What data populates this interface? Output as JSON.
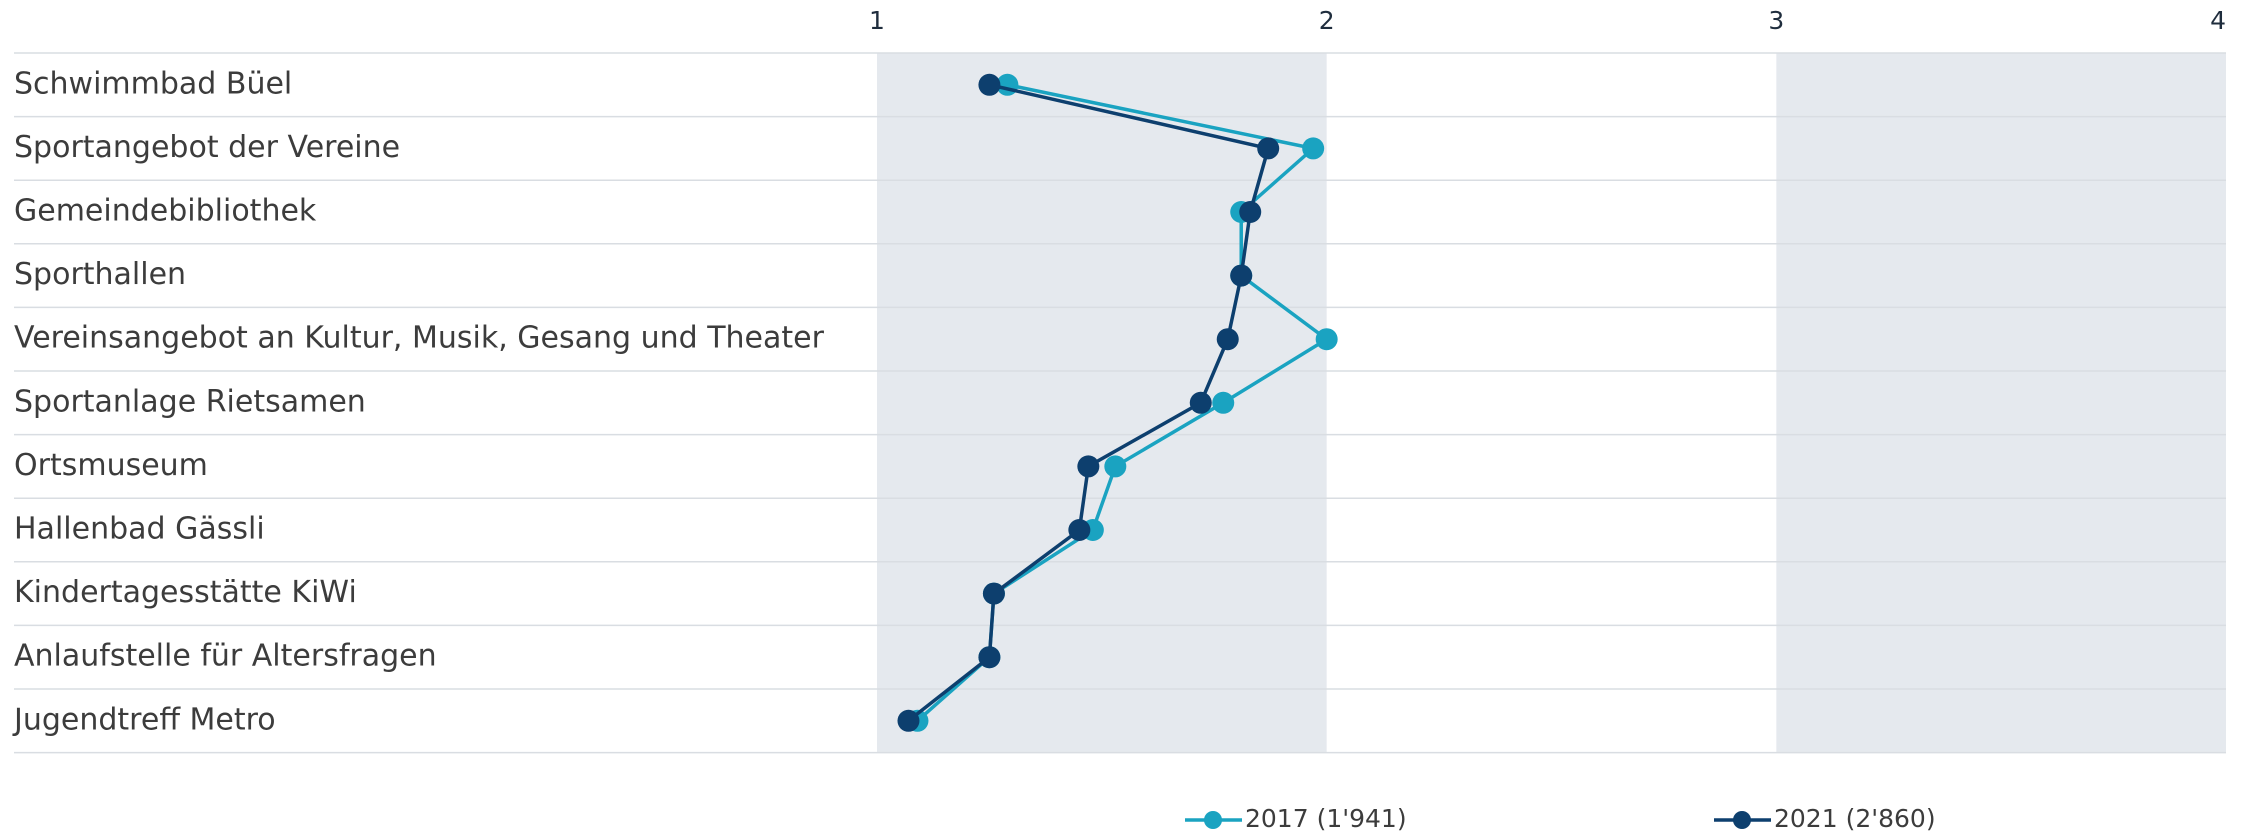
{
  "chart_data": {
    "type": "dot-line",
    "categories": [
      "Schwimmbad Büel",
      "Sportangebot der Vereine",
      "Gemeindebibliothek",
      "Sporthallen",
      "Vereinsangebot an Kultur, Musik, Gesang und Theater",
      "Sportanlage Rietsamen",
      "Ortsmuseum",
      "Hallenbad Gässli",
      "Kindertagesstätte KiWi",
      "Anlaufstelle für Altersfragen",
      "Jugendtreff Metro"
    ],
    "series": [
      {
        "name": "2017 (1'941)",
        "color": "#1aa3c1",
        "values": [
          1.29,
          1.97,
          1.81,
          1.81,
          2.0,
          1.77,
          1.53,
          1.48,
          1.26,
          1.25,
          1.09
        ]
      },
      {
        "name": "2021 (2'860)",
        "color": "#0d3f6e",
        "values": [
          1.25,
          1.87,
          1.83,
          1.81,
          1.78,
          1.72,
          1.47,
          1.45,
          1.26,
          1.25,
          1.07
        ]
      }
    ],
    "xlim": [
      1,
      4
    ],
    "xticks": [
      1,
      2,
      3,
      4
    ],
    "band_color": "#e5e9ee"
  }
}
